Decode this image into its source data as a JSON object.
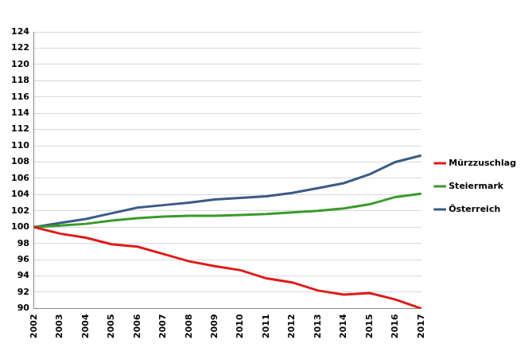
{
  "chart_data": {
    "type": "line",
    "categories": [
      "2002",
      "2003",
      "2004",
      "2005",
      "2006",
      "2007",
      "2008",
      "2009",
      "2010",
      "2011",
      "2012",
      "2013",
      "2014",
      "2015",
      "2016",
      "2017"
    ],
    "series": [
      {
        "name": "Mürzzuschlag",
        "color": "#dd1c1a",
        "values": [
          100,
          99.2,
          98.7,
          97.9,
          97.6,
          96.7,
          95.8,
          95.2,
          94.7,
          93.7,
          93.2,
          92.2,
          91.7,
          91.9,
          91.1,
          90.0
        ]
      },
      {
        "name": "Steiermark",
        "color": "#3a9a2a",
        "values": [
          100,
          100.2,
          100.4,
          100.8,
          101.1,
          101.3,
          101.4,
          101.4,
          101.5,
          101.6,
          101.8,
          102.0,
          102.3,
          102.8,
          103.7,
          104.1
        ]
      },
      {
        "name": "Österreich",
        "color": "#3b5a86",
        "values": [
          100,
          100.5,
          101.0,
          101.7,
          102.4,
          102.7,
          103.0,
          103.4,
          103.6,
          103.8,
          104.2,
          104.8,
          105.4,
          106.5,
          108.0,
          108.8
        ]
      }
    ],
    "ylim": [
      90,
      124
    ],
    "yticks": [
      90,
      92,
      94,
      96,
      98,
      100,
      102,
      104,
      106,
      108,
      110,
      112,
      114,
      116,
      118,
      120,
      122,
      124
    ],
    "grid": true,
    "legend": "right"
  }
}
